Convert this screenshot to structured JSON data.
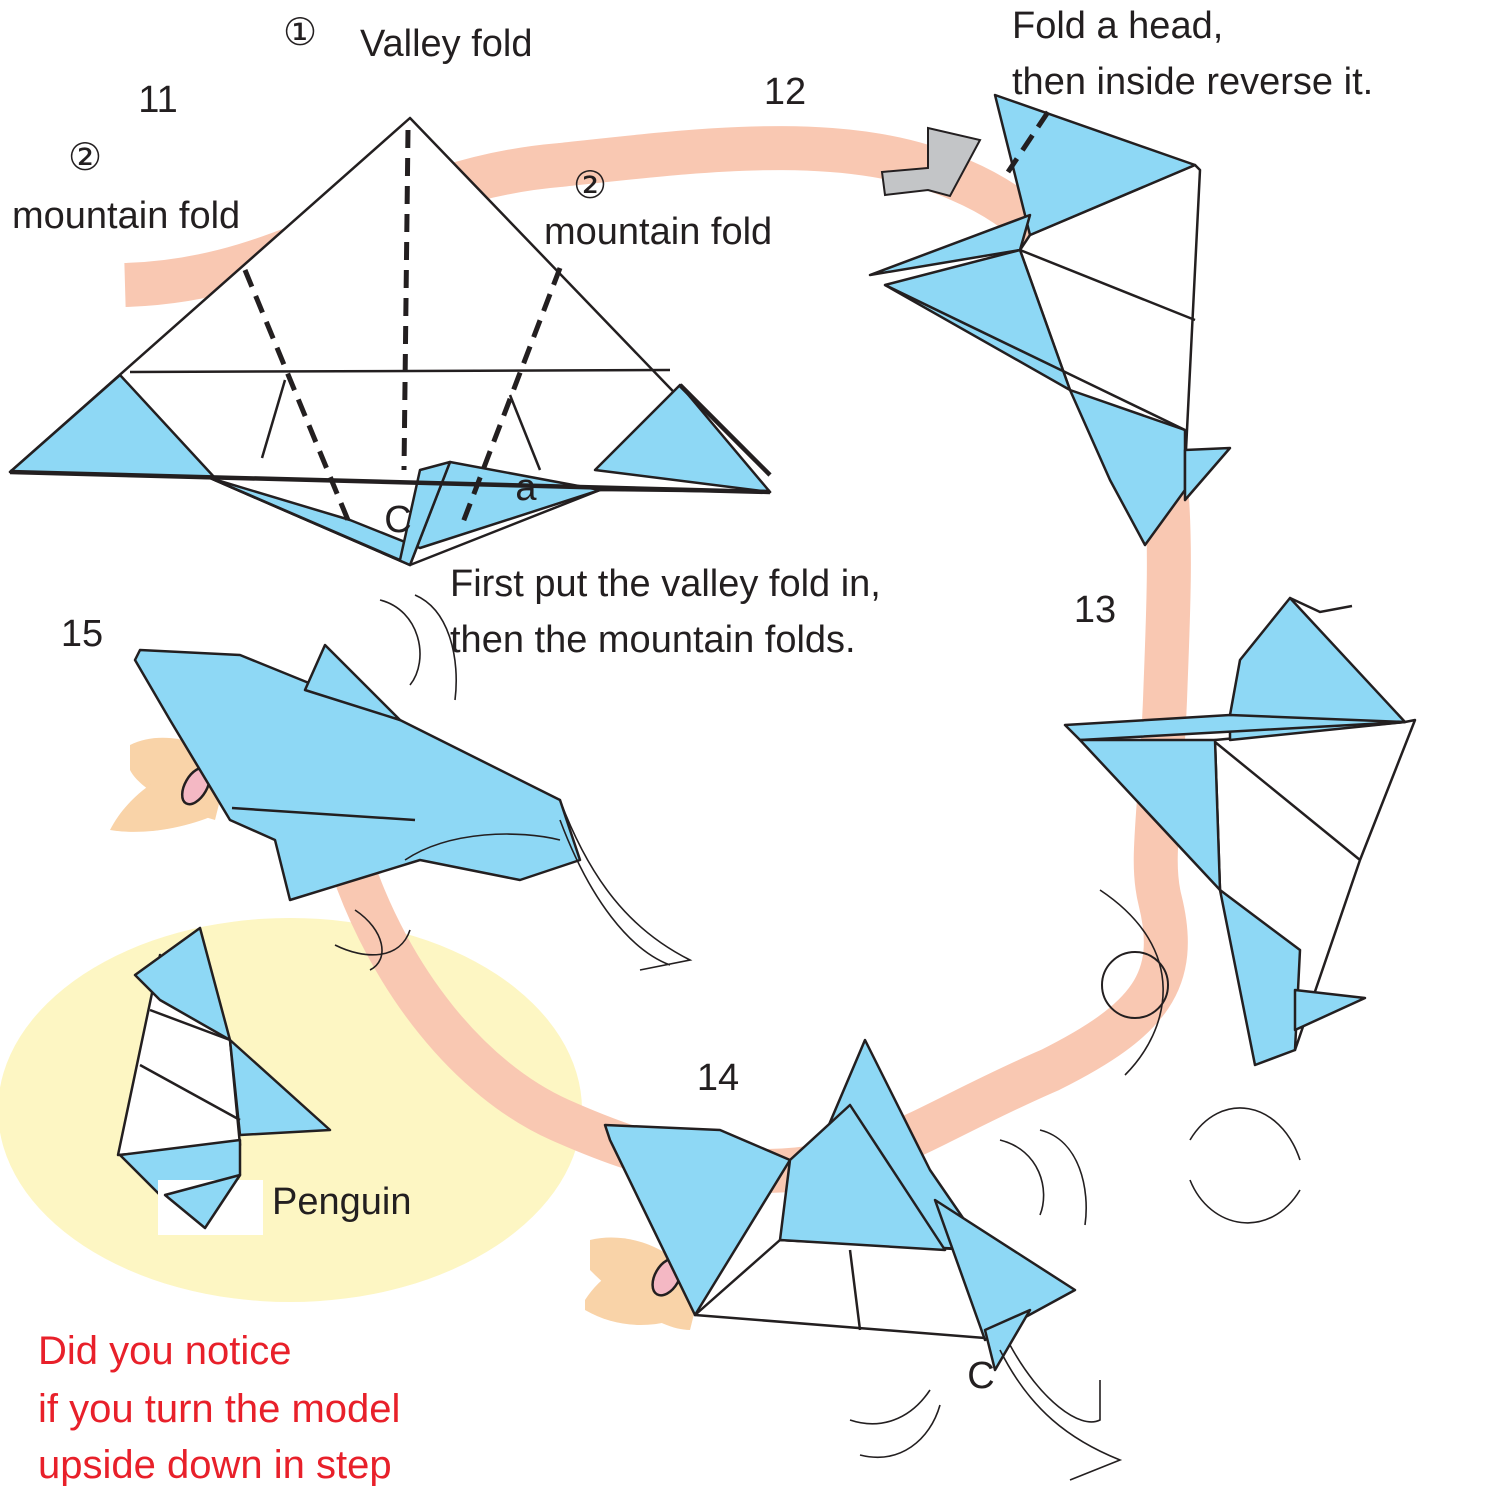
{
  "step11": {
    "number": "11",
    "valley_marker": "①",
    "valley_label": "Valley fold",
    "mountain_left_marker": "②",
    "mountain_left_label": "mountain fold",
    "mountain_right_marker": "②",
    "mountain_right_label": "mountain fold",
    "point_c": "C",
    "point_a": "a",
    "instructions": [
      "First put the valley fold in,",
      "then the mountain folds."
    ]
  },
  "step12": {
    "number": "12",
    "instructions": [
      "Fold a head,",
      "then inside reverse it."
    ]
  },
  "step13": {
    "number": "13"
  },
  "step14": {
    "number": "14",
    "point_c": "C"
  },
  "step15": {
    "number": "15",
    "result": "Penguin"
  },
  "note": [
    "Did you notice",
    "if you turn the model",
    "upside down in step"
  ]
}
